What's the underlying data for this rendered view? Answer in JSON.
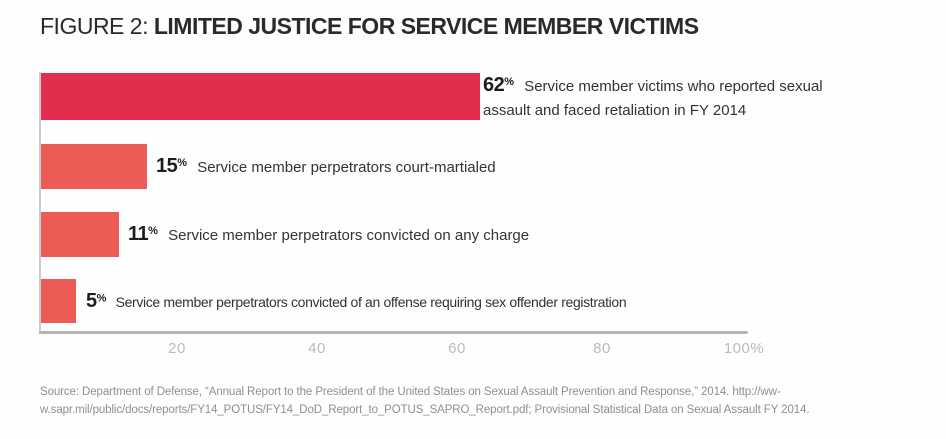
{
  "title": {
    "prefix": "FIGURE 2:",
    "main": "LIMITED JUSTICE FOR SERVICE MEMBER VICTIMS"
  },
  "chart_data": {
    "type": "bar",
    "orientation": "horizontal",
    "unit": "%",
    "xlim": [
      0,
      100
    ],
    "x_ticks": [
      "20",
      "40",
      "60",
      "80",
      "100%"
    ],
    "grid": false,
    "axis_color": "#b5b5b5",
    "bars": [
      {
        "value": 62,
        "percent_sign": "%",
        "label": "Service member victims who reported sexual assault and faced retaliation in FY 2014",
        "color": "#e22d4e"
      },
      {
        "value": 15,
        "percent_sign": "%",
        "label": "Service member perpetrators court-martialed",
        "color": "#ec5b56"
      },
      {
        "value": 11,
        "percent_sign": "%",
        "label": "Service member perpetrators convicted on any charge",
        "color": "#ec5b56"
      },
      {
        "value": 5,
        "percent_sign": "%",
        "label": "Service member perpetrators convicted of an offense requiring sex offender registration",
        "color": "#ec5b56"
      }
    ]
  },
  "source": {
    "line1": "Source: Department of Defense, “Annual Report to the President of the United States on Sexual Assault Prevention and Response,” 2014. http://ww-",
    "line2": "w.sapr.mil/public/docs/reports/FY14_POTUS/FY14_DoD_Report_to_POTUS_SAPRO_Report.pdf; Provisional Statistical Data on Sexual Assault FY 2014."
  }
}
